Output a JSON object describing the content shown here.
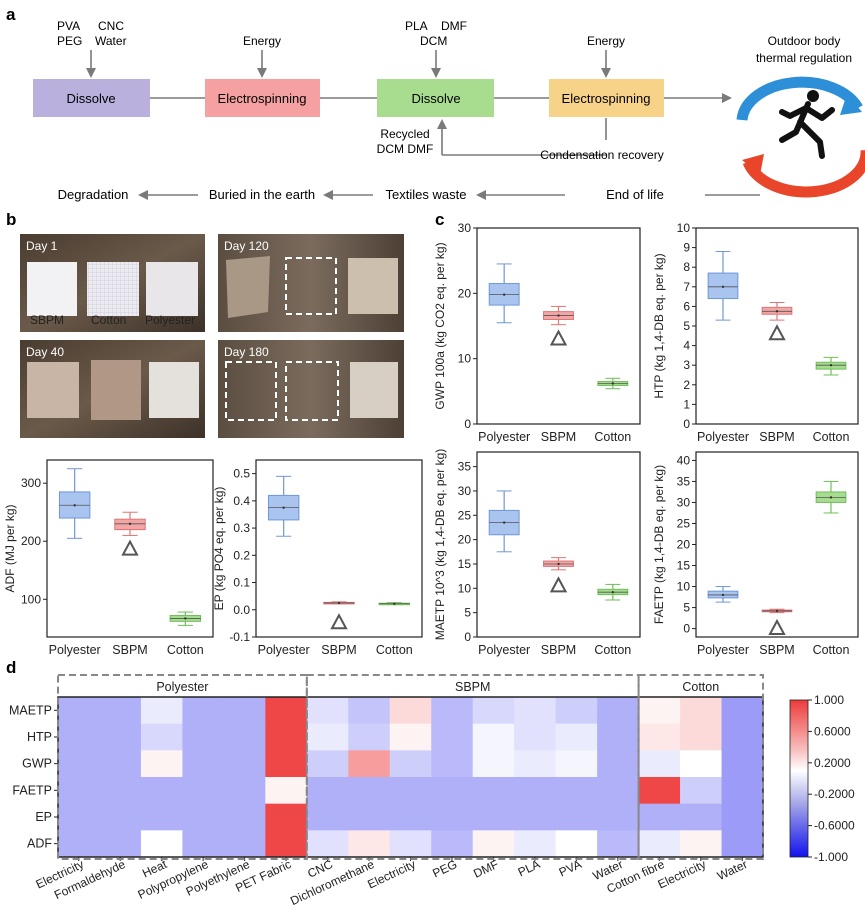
{
  "panels": {
    "a": "a",
    "b": "b",
    "c": "c",
    "d": "d"
  },
  "flow": {
    "inputs1": [
      "PVA",
      "CNC",
      "PEG",
      "Water"
    ],
    "inputs3": [
      "PLA",
      "DMF",
      "DCM"
    ],
    "energy": "Energy",
    "boxes": [
      "Dissolve",
      "Electrospinning",
      "Dissolve",
      "Electrospinning"
    ],
    "box_colors": [
      "#b9b0de",
      "#f5a1a1",
      "#a8dc8f",
      "#f7d38a"
    ],
    "recycled": [
      "Recycled",
      "DCM DMF"
    ],
    "condensation": "Condensation recovery",
    "outdoor": [
      "Outdoor body",
      "thermal regulation"
    ],
    "end_chain": [
      "Degradation",
      "Buried in the earth",
      "Textiles waste",
      "End of life"
    ]
  },
  "photos": {
    "days": [
      "Day 1",
      "Day 120",
      "Day 40",
      "Day 180"
    ],
    "samples": [
      "SBPM",
      "Cotton",
      "Polyester"
    ]
  },
  "chart_data": [
    {
      "id": "ADF",
      "type": "box",
      "categories": [
        "Polyester",
        "SBPM",
        "Cotton"
      ],
      "ylabel": "ADF (MJ per kg)",
      "ylim": [
        35,
        340
      ],
      "yticks": [
        "100",
        "200",
        "300"
      ],
      "ytick_values": [
        100,
        200,
        300
      ],
      "boxes": [
        {
          "q1": 240,
          "median": 262,
          "q3": 285,
          "wlow": 205,
          "whigh": 325
        },
        {
          "q1": 220,
          "median": 230,
          "q3": 238,
          "wlow": 210,
          "whigh": 250
        },
        {
          "q1": 62,
          "median": 67,
          "q3": 72,
          "wlow": 55,
          "whigh": 78
        }
      ],
      "triangle": 1
    },
    {
      "id": "EP",
      "type": "box",
      "categories": [
        "Polyester",
        "SBPM",
        "Cotton"
      ],
      "ylabel": "EP (kg PO4 eq. per kg)",
      "ylim": [
        -0.1,
        0.55
      ],
      "yticks": [
        "-0.1",
        "0.0",
        "0.1",
        "0.2",
        "0.3",
        "0.4",
        "0.5"
      ],
      "ytick_values": [
        -0.1,
        0.0,
        0.1,
        0.2,
        0.3,
        0.4,
        0.5
      ],
      "boxes": [
        {
          "q1": 0.33,
          "median": 0.375,
          "q3": 0.42,
          "wlow": 0.27,
          "whigh": 0.49
        },
        {
          "q1": 0.024,
          "median": 0.025,
          "q3": 0.027,
          "wlow": 0.022,
          "whigh": 0.029
        },
        {
          "q1": 0.021,
          "median": 0.022,
          "q3": 0.024,
          "wlow": 0.019,
          "whigh": 0.026
        }
      ],
      "triangle": 1
    },
    {
      "id": "GWP",
      "type": "box",
      "categories": [
        "Polyester",
        "SBPM",
        "Cotton"
      ],
      "ylabel": "GWP 100a (kg CO2 eq. per kg)",
      "ylim": [
        0,
        30
      ],
      "yticks": [
        "0",
        "10",
        "20",
        "30"
      ],
      "ytick_values": [
        0,
        10,
        20,
        30
      ],
      "boxes": [
        {
          "q1": 18.2,
          "median": 19.8,
          "q3": 21.5,
          "wlow": 15.5,
          "whigh": 24.5
        },
        {
          "q1": 16.0,
          "median": 16.6,
          "q3": 17.2,
          "wlow": 15.2,
          "whigh": 18.0
        },
        {
          "q1": 5.9,
          "median": 6.2,
          "q3": 6.5,
          "wlow": 5.4,
          "whigh": 7.0
        }
      ],
      "triangle": 1
    },
    {
      "id": "HTP",
      "type": "box",
      "categories": [
        "Polyester",
        "SBPM",
        "Cotton"
      ],
      "ylabel": "HTP (kg 1,4-DB eq. per kg)",
      "ylim": [
        0,
        10
      ],
      "yticks": [
        "0",
        "1",
        "2",
        "3",
        "4",
        "5",
        "6",
        "7",
        "8",
        "9",
        "10"
      ],
      "ytick_values": [
        0,
        1,
        2,
        3,
        4,
        5,
        6,
        7,
        8,
        9,
        10
      ],
      "boxes": [
        {
          "q1": 6.4,
          "median": 7.0,
          "q3": 7.7,
          "wlow": 5.3,
          "whigh": 8.8
        },
        {
          "q1": 5.6,
          "median": 5.75,
          "q3": 5.95,
          "wlow": 5.3,
          "whigh": 6.2
        },
        {
          "q1": 2.8,
          "median": 3.0,
          "q3": 3.15,
          "wlow": 2.5,
          "whigh": 3.4
        }
      ],
      "triangle": 1
    },
    {
      "id": "MAETP",
      "type": "box",
      "categories": [
        "Polyester",
        "SBPM",
        "Cotton"
      ],
      "ylabel": "MAETP 10^3 (kg 1,4-DB eq. per kg)",
      "ylim": [
        0,
        38
      ],
      "yticks": [
        "0",
        "5",
        "10",
        "15",
        "20",
        "25",
        "30",
        "35"
      ],
      "ytick_values": [
        0,
        5,
        10,
        15,
        20,
        25,
        30,
        35
      ],
      "boxes": [
        {
          "q1": 21.0,
          "median": 23.5,
          "q3": 26.0,
          "wlow": 17.5,
          "whigh": 30.0
        },
        {
          "q1": 14.5,
          "median": 15.0,
          "q3": 15.6,
          "wlow": 13.8,
          "whigh": 16.3
        },
        {
          "q1": 8.7,
          "median": 9.2,
          "q3": 9.8,
          "wlow": 7.6,
          "whigh": 10.8
        }
      ],
      "triangle": 1
    },
    {
      "id": "FAETP",
      "type": "box",
      "categories": [
        "Polyester",
        "SBPM",
        "Cotton"
      ],
      "ylabel": "FAETP (kg 1,4-DB eq. per kg)",
      "ylim": [
        -2,
        42
      ],
      "yticks": [
        "0",
        "5",
        "10",
        "15",
        "20",
        "25",
        "30",
        "35",
        "40"
      ],
      "ytick_values": [
        0,
        5,
        10,
        15,
        20,
        25,
        30,
        35,
        40
      ],
      "boxes": [
        {
          "q1": 7.3,
          "median": 8.0,
          "q3": 8.9,
          "wlow": 6.3,
          "whigh": 10.0
        },
        {
          "q1": 4.0,
          "median": 4.2,
          "q3": 4.4,
          "wlow": 3.8,
          "whigh": 4.6
        },
        {
          "q1": 30.0,
          "median": 31.2,
          "q3": 32.5,
          "wlow": 27.5,
          "whigh": 35.0
        }
      ],
      "triangle": 1
    },
    {
      "id": "heatmap",
      "type": "heatmap",
      "rows": [
        "MAETP",
        "HTP",
        "GWP",
        "FAETP",
        "EP",
        "ADF"
      ],
      "cols": [
        "Electricity",
        "Formaldehyde",
        "Heat",
        "Polypropylene",
        "Polyethylene",
        "PET Fabric",
        "CNC",
        "Dichloromethane",
        "Electricity",
        "PEG",
        "DMF",
        "PLA",
        "PVA",
        "Water",
        "Cotton fibre",
        "Electricity",
        "Water"
      ],
      "groups": [
        {
          "name": "Polyester",
          "cols": 6
        },
        {
          "name": "SBPM",
          "cols": 8
        },
        {
          "name": "Cotton",
          "cols": 3
        }
      ],
      "values": [
        [
          -0.2,
          -0.2,
          0.1,
          -0.2,
          -0.2,
          0.95,
          0.05,
          -0.1,
          0.35,
          -0.15,
          0.0,
          0.05,
          -0.05,
          -0.2,
          0.25,
          0.35,
          -0.3
        ],
        [
          -0.2,
          -0.2,
          0.0,
          -0.2,
          -0.2,
          0.95,
          0.1,
          -0.05,
          0.25,
          -0.15,
          0.15,
          0.05,
          0.1,
          -0.2,
          0.3,
          0.35,
          -0.3
        ],
        [
          -0.2,
          -0.2,
          0.25,
          -0.2,
          -0.2,
          0.95,
          -0.05,
          0.6,
          -0.05,
          -0.15,
          0.15,
          0.1,
          0.15,
          -0.2,
          0.1,
          0.2,
          -0.3
        ],
        [
          -0.2,
          -0.2,
          -0.2,
          -0.2,
          -0.2,
          0.25,
          -0.2,
          -0.2,
          -0.2,
          -0.2,
          -0.2,
          -0.2,
          -0.2,
          -0.2,
          0.95,
          -0.05,
          -0.3
        ],
        [
          -0.2,
          -0.2,
          -0.2,
          -0.2,
          -0.2,
          0.95,
          -0.2,
          -0.2,
          -0.2,
          -0.2,
          -0.2,
          -0.2,
          -0.2,
          -0.2,
          -0.2,
          -0.2,
          -0.3
        ],
        [
          -0.2,
          -0.2,
          0.2,
          -0.2,
          -0.2,
          0.95,
          0.05,
          0.3,
          0.05,
          -0.15,
          0.25,
          0.1,
          0.2,
          -0.15,
          0.1,
          0.25,
          -0.3
        ]
      ],
      "colorbar_ticks": [
        "1.000",
        "0.6000",
        "0.2000",
        "-0.2000",
        "-0.6000",
        "-1.000"
      ],
      "colorbar_tick_values": [
        1.0,
        0.6,
        0.2,
        -0.2,
        -0.6,
        -1.0
      ]
    }
  ]
}
